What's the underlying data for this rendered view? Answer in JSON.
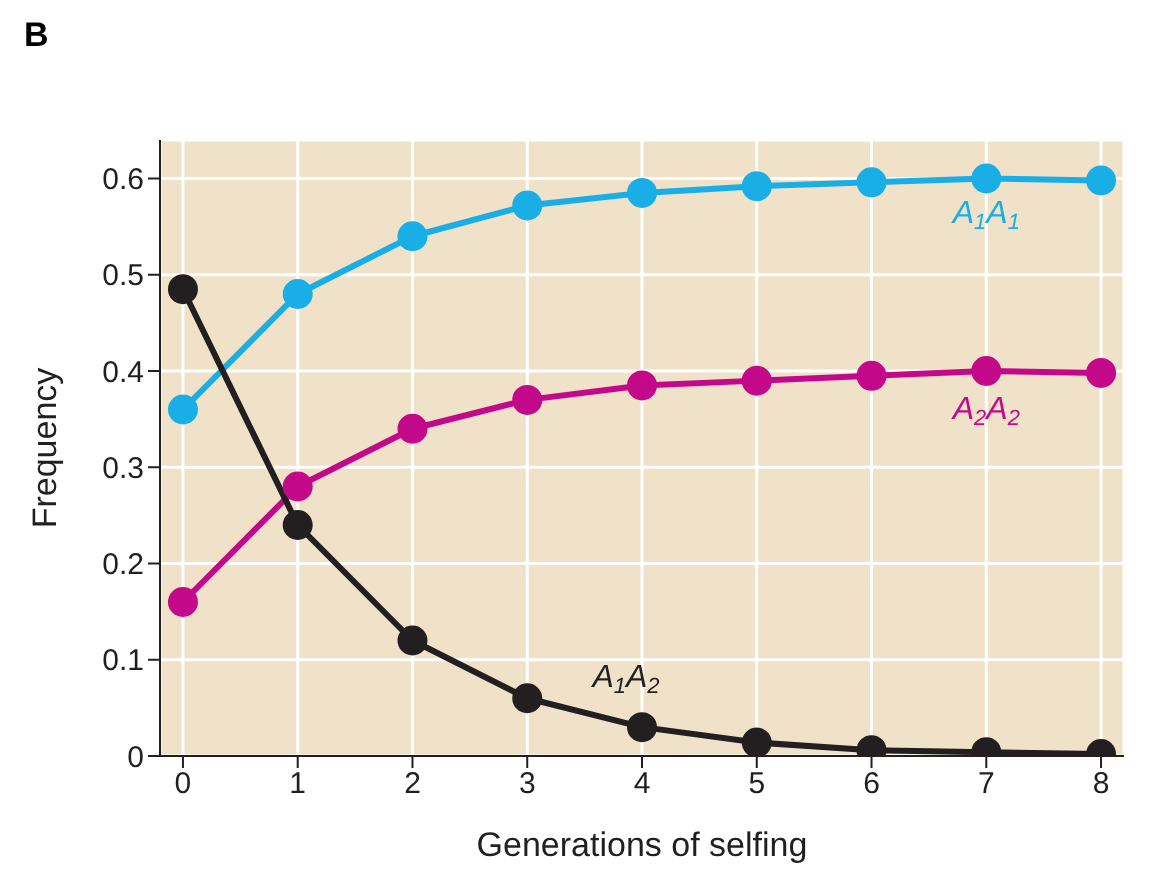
{
  "chart_data": {
    "type": "line",
    "title": "B",
    "xlabel": "Generations of selfing",
    "ylabel": "Frequency",
    "x": [
      0,
      1,
      2,
      3,
      4,
      5,
      6,
      7,
      8
    ],
    "series": [
      {
        "name": "A$_{1}$A$_{1}$",
        "color": "#19aee6",
        "values": [
          0.36,
          0.48,
          0.54,
          0.572,
          0.585,
          0.592,
          0.596,
          0.6,
          0.598
        ]
      },
      {
        "name": "A$_{2}$A$_{2}$",
        "color": "#c4088a",
        "values": [
          0.16,
          0.28,
          0.34,
          0.37,
          0.385,
          0.39,
          0.395,
          0.4,
          0.398
        ]
      },
      {
        "name": "A$_{1}$A$_{2}$",
        "color": "#231f20",
        "values": [
          0.485,
          0.24,
          0.12,
          0.06,
          0.03,
          0.014,
          0.006,
          0.004,
          0.002
        ]
      }
    ],
    "xlim": [
      -0.2,
      8.2
    ],
    "xticks": [
      0,
      1,
      2,
      3,
      4,
      5,
      6,
      7,
      8
    ],
    "ylim": [
      0,
      0.64
    ],
    "yticks": [
      0,
      0.1,
      0.2,
      0.3,
      0.4,
      0.5,
      0.6
    ],
    "grid": true,
    "marker": "circle",
    "line_style": "solid"
  }
}
